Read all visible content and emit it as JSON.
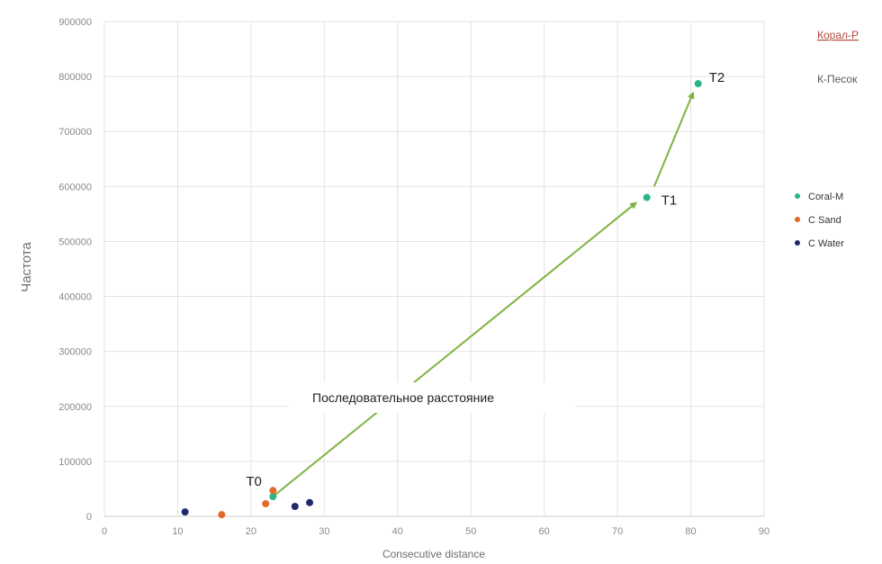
{
  "chart_data": {
    "type": "scatter",
    "xlabel": "Consecutive distance",
    "ylabel": "Частота",
    "xlim": [
      0,
      90
    ],
    "ylim": [
      0,
      900000
    ],
    "x_ticks": [
      0,
      10,
      20,
      30,
      40,
      50,
      60,
      70,
      80,
      90
    ],
    "y_ticks": [
      0,
      100000,
      200000,
      300000,
      400000,
      500000,
      600000,
      700000,
      800000,
      900000
    ],
    "grid": true,
    "legend_position": "right",
    "series": [
      {
        "name": "Coral-M",
        "color": "#2bb58a",
        "points": [
          [
            23,
            36000
          ],
          [
            74,
            580000
          ],
          [
            81,
            787000
          ]
        ]
      },
      {
        "name": "C Sand",
        "color": "#e4692a",
        "points": [
          [
            16,
            3000
          ],
          [
            22,
            23000
          ],
          [
            23,
            47000
          ]
        ]
      },
      {
        "name": "C Water",
        "color": "#1f2a6b",
        "points": [
          [
            11,
            8000
          ],
          [
            26,
            18000
          ],
          [
            28,
            25000
          ]
        ]
      }
    ],
    "annotations": [
      {
        "text": "T0",
        "x": 23,
        "y": 36000
      },
      {
        "text": "T1",
        "x": 74,
        "y": 580000
      },
      {
        "text": "T2",
        "x": 81,
        "y": 787000
      }
    ],
    "arrows": [
      {
        "from": [
          23,
          36000
        ],
        "to": [
          72.5,
          570000
        ],
        "color": "#7fb241"
      },
      {
        "from": [
          75,
          600000
        ],
        "to": [
          80.3,
          770000
        ],
        "color": "#7fb241"
      }
    ],
    "center_annotation": "Последовательное расстояние",
    "corner_labels": [
      "Корал-Р",
      "К-Песок"
    ]
  }
}
